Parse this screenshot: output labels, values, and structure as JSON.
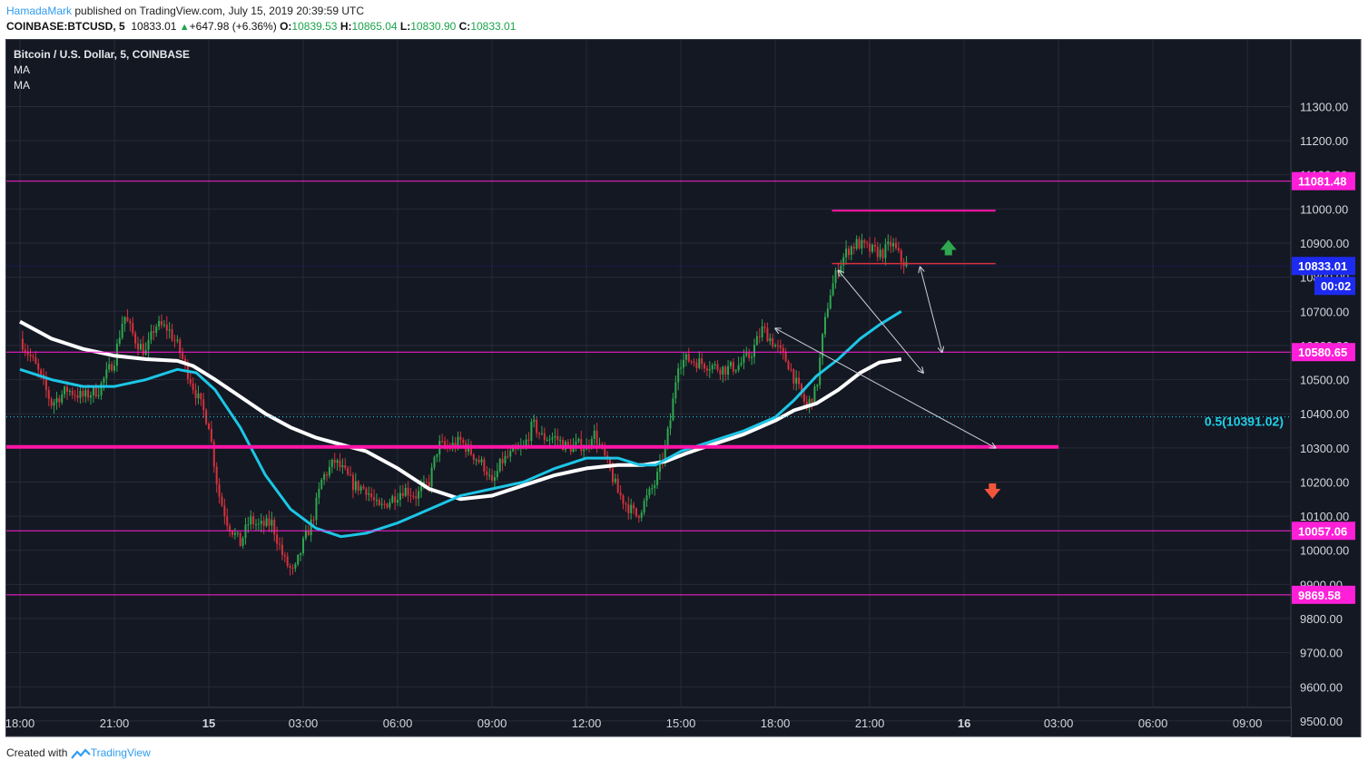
{
  "header": {
    "author": "HamadaMark",
    "published": "published on TradingView.com, July 15, 2019 20:39:59 UTC",
    "symbol": "COINBASE:BTCUSD, 5",
    "price": "10833.01",
    "change": "+647.98 (+6.36%)",
    "o_label": "O:",
    "o_value": "10839.53",
    "h_label": "H:",
    "h_value": "10865.04",
    "l_label": "L:",
    "l_value": "10830.90",
    "c_label": "C:",
    "c_value": "10833.01"
  },
  "legend": {
    "title": "Bitcoin / U.S. Dollar, 5, COINBASE",
    "ma1": "MA",
    "ma2": "MA"
  },
  "footer": {
    "created": "Created with",
    "brand": "TradingView"
  },
  "colors": {
    "background": "#141823",
    "grid": "#262b38",
    "up": "#2fa84f",
    "down": "#d5323c",
    "magenta": "#ff1fd8",
    "hotpink": "#ff14a8",
    "ma_fast": "#1cc6e6",
    "ma_slow": "#ffffff",
    "fib": "#1fd0e8",
    "last_price_bg": "#1d2bf0"
  },
  "chart_data": {
    "type": "candlestick",
    "title": "Bitcoin / U.S. Dollar, 5, COINBASE",
    "y_ticks": [
      "9500.00",
      "9600.00",
      "9700.00",
      "9800.00",
      "9900.00",
      "10000.00",
      "10100.00",
      "10200.00",
      "10300.00",
      "10400.00",
      "10500.00",
      "10600.00",
      "10700.00",
      "10800.00",
      "10900.00",
      "11000.00",
      "11100.00",
      "11200.00",
      "11300.00"
    ],
    "ylim": [
      9450,
      11370
    ],
    "x_ticks": [
      {
        "label": "18:00",
        "bold": false,
        "t": 0
      },
      {
        "label": "21:00",
        "bold": false,
        "t": 3
      },
      {
        "label": "15",
        "bold": true,
        "t": 6
      },
      {
        "label": "03:00",
        "bold": false,
        "t": 9
      },
      {
        "label": "06:00",
        "bold": false,
        "t": 12
      },
      {
        "label": "09:00",
        "bold": false,
        "t": 15
      },
      {
        "label": "12:00",
        "bold": false,
        "t": 18
      },
      {
        "label": "15:00",
        "bold": false,
        "t": 21
      },
      {
        "label": "18:00",
        "bold": false,
        "t": 24
      },
      {
        "label": "21:00",
        "bold": false,
        "t": 27
      },
      {
        "label": "16",
        "bold": true,
        "t": 30
      },
      {
        "label": "03:00",
        "bold": false,
        "t": 33
      },
      {
        "label": "06:00",
        "bold": false,
        "t": 36
      },
      {
        "label": "09:00",
        "bold": false,
        "t": 39
      }
    ],
    "price_path": [
      [
        0,
        10620
      ],
      [
        0.5,
        10540
      ],
      [
        1,
        10430
      ],
      [
        1.5,
        10470
      ],
      [
        2,
        10450
      ],
      [
        2.5,
        10470
      ],
      [
        3,
        10560
      ],
      [
        3.3,
        10690
      ],
      [
        3.7,
        10610
      ],
      [
        4,
        10580
      ],
      [
        4.3,
        10660
      ],
      [
        4.7,
        10650
      ],
      [
        5,
        10600
      ],
      [
        5.5,
        10480
      ],
      [
        6,
        10370
      ],
      [
        6.3,
        10170
      ],
      [
        6.6,
        10080
      ],
      [
        7,
        10020
      ],
      [
        7.3,
        10090
      ],
      [
        7.6,
        10070
      ],
      [
        8,
        10080
      ],
      [
        8.4,
        9970
      ],
      [
        8.7,
        9930
      ],
      [
        9,
        10020
      ],
      [
        9.3,
        10090
      ],
      [
        9.6,
        10210
      ],
      [
        10,
        10260
      ],
      [
        10.3,
        10230
      ],
      [
        10.6,
        10190
      ],
      [
        11,
        10180
      ],
      [
        11.4,
        10120
      ],
      [
        11.8,
        10150
      ],
      [
        12.2,
        10180
      ],
      [
        12.6,
        10160
      ],
      [
        13,
        10200
      ],
      [
        13.3,
        10310
      ],
      [
        13.6,
        10300
      ],
      [
        14,
        10320
      ],
      [
        14.4,
        10280
      ],
      [
        14.8,
        10240
      ],
      [
        15,
        10190
      ],
      [
        15.3,
        10260
      ],
      [
        15.6,
        10280
      ],
      [
        16,
        10300
      ],
      [
        16.3,
        10370
      ],
      [
        16.6,
        10330
      ],
      [
        17,
        10330
      ],
      [
        17.4,
        10300
      ],
      [
        17.8,
        10310
      ],
      [
        18,
        10300
      ],
      [
        18.2,
        10350
      ],
      [
        18.5,
        10290
      ],
      [
        18.8,
        10220
      ],
      [
        19,
        10170
      ],
      [
        19.3,
        10130
      ],
      [
        19.6,
        10100
      ],
      [
        19.9,
        10150
      ],
      [
        20.2,
        10200
      ],
      [
        20.5,
        10300
      ],
      [
        20.7,
        10400
      ],
      [
        20.9,
        10550
      ],
      [
        21.2,
        10560
      ],
      [
        21.6,
        10550
      ],
      [
        22,
        10540
      ],
      [
        22.4,
        10530
      ],
      [
        22.8,
        10540
      ],
      [
        23.2,
        10570
      ],
      [
        23.6,
        10650
      ],
      [
        24,
        10600
      ],
      [
        24.4,
        10550
      ],
      [
        24.7,
        10480
      ],
      [
        25,
        10420
      ],
      [
        25.3,
        10470
      ],
      [
        25.5,
        10620
      ],
      [
        25.7,
        10740
      ],
      [
        26,
        10830
      ],
      [
        26.3,
        10880
      ],
      [
        26.6,
        10900
      ],
      [
        27,
        10880
      ],
      [
        27.4,
        10870
      ],
      [
        27.7,
        10900
      ],
      [
        28,
        10850
      ],
      [
        28.2,
        10833
      ]
    ],
    "ma_fast": [
      [
        0,
        10530
      ],
      [
        1,
        10500
      ],
      [
        2,
        10480
      ],
      [
        3,
        10480
      ],
      [
        4,
        10500
      ],
      [
        5,
        10530
      ],
      [
        5.6,
        10520
      ],
      [
        6.2,
        10470
      ],
      [
        7,
        10360
      ],
      [
        7.8,
        10220
      ],
      [
        8.6,
        10120
      ],
      [
        9.4,
        10065
      ],
      [
        10.2,
        10040
      ],
      [
        11,
        10050
      ],
      [
        12,
        10080
      ],
      [
        13,
        10120
      ],
      [
        14,
        10160
      ],
      [
        15,
        10180
      ],
      [
        16,
        10200
      ],
      [
        17,
        10240
      ],
      [
        18,
        10270
      ],
      [
        19,
        10270
      ],
      [
        19.7,
        10250
      ],
      [
        20.2,
        10250
      ],
      [
        21,
        10290
      ],
      [
        22,
        10320
      ],
      [
        23,
        10350
      ],
      [
        24,
        10390
      ],
      [
        24.6,
        10440
      ],
      [
        25.3,
        10510
      ],
      [
        26,
        10560
      ],
      [
        26.7,
        10620
      ],
      [
        27.3,
        10660
      ],
      [
        28,
        10700
      ]
    ],
    "ma_slow": [
      [
        0,
        10670
      ],
      [
        1,
        10620
      ],
      [
        2,
        10590
      ],
      [
        3,
        10570
      ],
      [
        4,
        10560
      ],
      [
        5,
        10555
      ],
      [
        5.5,
        10540
      ],
      [
        6.2,
        10500
      ],
      [
        7,
        10450
      ],
      [
        7.8,
        10400
      ],
      [
        8.6,
        10360
      ],
      [
        9.4,
        10330
      ],
      [
        10.2,
        10310
      ],
      [
        11,
        10290
      ],
      [
        12,
        10240
      ],
      [
        13,
        10180
      ],
      [
        14,
        10150
      ],
      [
        15,
        10160
      ],
      [
        16,
        10190
      ],
      [
        17,
        10220
      ],
      [
        18,
        10240
      ],
      [
        19,
        10250
      ],
      [
        19.8,
        10250
      ],
      [
        20.5,
        10260
      ],
      [
        21.2,
        10285
      ],
      [
        22,
        10310
      ],
      [
        23,
        10340
      ],
      [
        24,
        10380
      ],
      [
        24.6,
        10410
      ],
      [
        25.3,
        10430
      ],
      [
        26,
        10470
      ],
      [
        26.7,
        10520
      ],
      [
        27.3,
        10550
      ],
      [
        28,
        10560
      ]
    ],
    "horizontal_levels": [
      {
        "price": 11081.48,
        "label": "11081.48",
        "color": "magenta",
        "width": 1
      },
      {
        "price": 10580.65,
        "label": "10580.65",
        "color": "magenta",
        "width": 1
      },
      {
        "price": 10057.06,
        "label": "10057.06",
        "color": "magenta",
        "width": 1
      },
      {
        "price": 9869.58,
        "label": "9869.58",
        "color": "magenta",
        "width": 1
      },
      {
        "price": 10303,
        "label": "",
        "color": "hotpink",
        "width": 4,
        "t_end": 33
      }
    ],
    "fib_line": {
      "price": 10391.02,
      "label": "0.5(10391.02)"
    },
    "resistance_segment": {
      "price": 10995,
      "t_start": 25.8,
      "t_end": 31
    },
    "support_segment": {
      "price": 10840,
      "t_start": 25.8,
      "t_end": 31
    },
    "last_price": {
      "price": 10833.01,
      "label": "10833.01",
      "countdown": "00:02"
    },
    "arrows": [
      {
        "from": [
          24,
          10650
        ],
        "to": [
          31,
          10300
        ]
      },
      {
        "from": [
          26,
          10820
        ],
        "to": [
          28.7,
          10520
        ]
      },
      {
        "from": [
          28.6,
          10830
        ],
        "to": [
          29.3,
          10580
        ]
      }
    ],
    "markers": [
      {
        "type": "up",
        "t": 29.5,
        "price": 10880
      },
      {
        "type": "down",
        "t": 30.9,
        "price": 10180
      }
    ]
  }
}
